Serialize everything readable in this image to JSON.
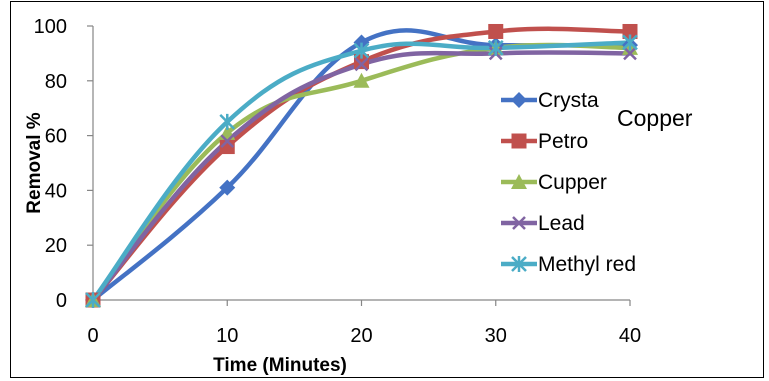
{
  "chart_data": {
    "type": "line",
    "xlabel": "Time (Minutes)",
    "ylabel": "Removal %",
    "xlim": [
      0,
      40
    ],
    "ylim": [
      0,
      100
    ],
    "x_ticks": [
      0,
      10,
      20,
      30,
      40
    ],
    "y_ticks": [
      0,
      20,
      40,
      60,
      80,
      100
    ],
    "grid": false,
    "legend_position": "right",
    "annotation": "Copper",
    "x": [
      0,
      10,
      20,
      30,
      40
    ],
    "series": [
      {
        "name": "Crystal violet",
        "legend_text": "Crysta",
        "color": "#4472C4",
        "marker": "diamond",
        "values": [
          0,
          41,
          94,
          93,
          93
        ]
      },
      {
        "name": "Petro",
        "legend_text": "Petro",
        "color": "#C0504D",
        "marker": "square",
        "values": [
          0,
          56,
          87,
          98,
          98
        ]
      },
      {
        "name": "Cupper",
        "legend_text": "Cupper",
        "color": "#9BBB59",
        "marker": "triangle",
        "values": [
          0,
          61,
          80,
          92,
          92
        ]
      },
      {
        "name": "Lead",
        "legend_text": "Lead",
        "color": "#8064A2",
        "marker": "x",
        "values": [
          0,
          58,
          86,
          90,
          90
        ]
      },
      {
        "name": "Methyl red",
        "legend_text": "Methyl red",
        "color": "#4BACC6",
        "marker": "star",
        "values": [
          0,
          65,
          91,
          92,
          94
        ]
      }
    ]
  }
}
